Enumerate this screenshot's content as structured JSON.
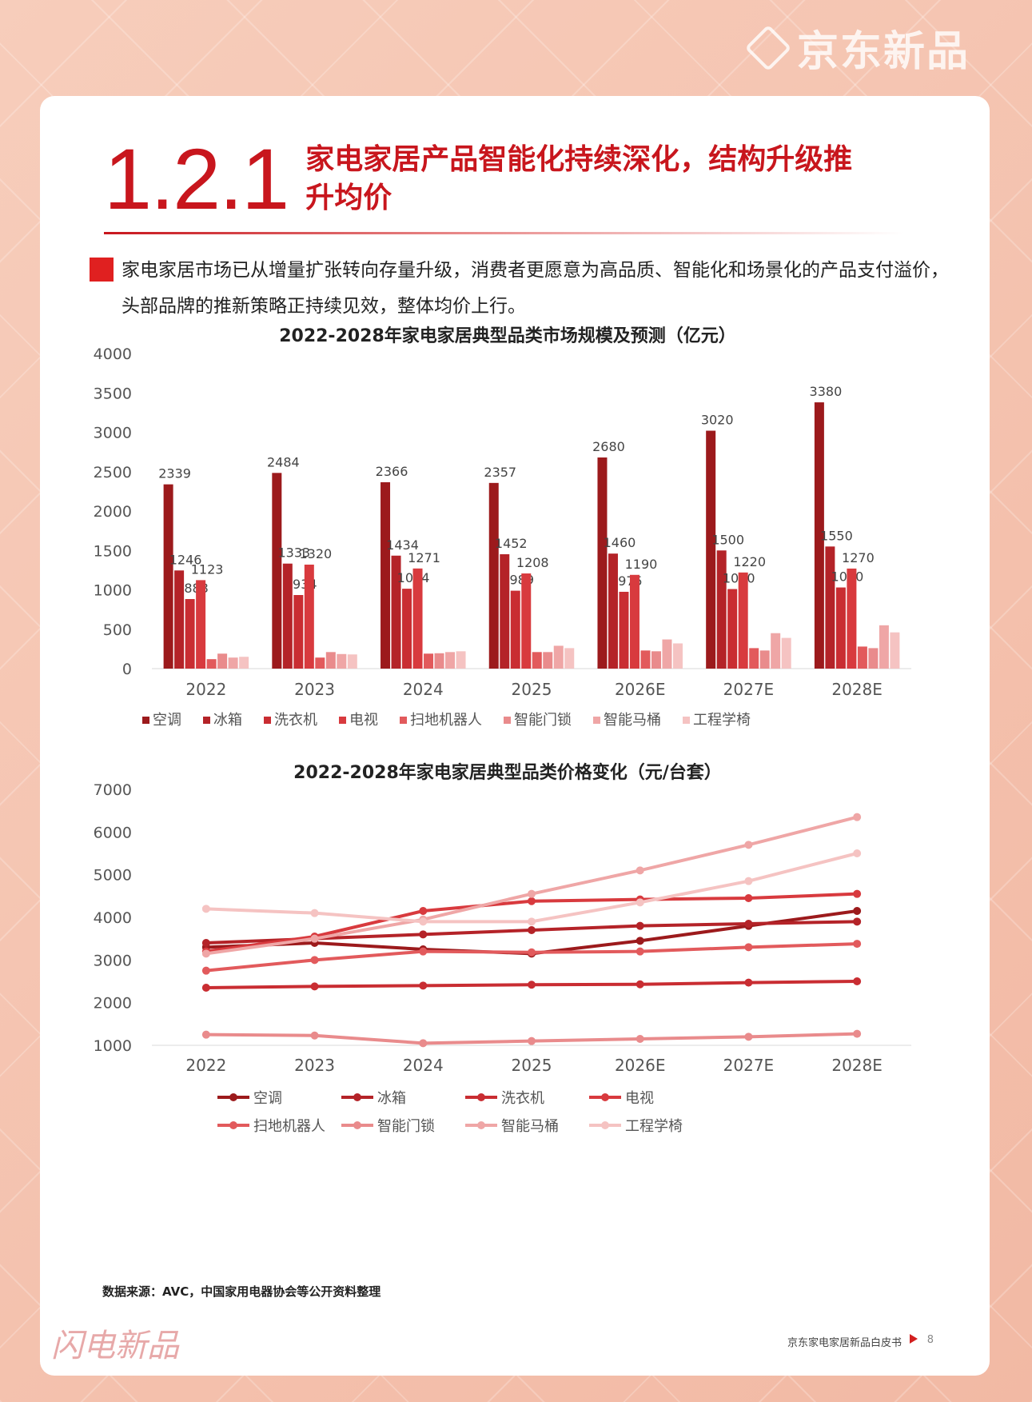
{
  "brand": {
    "name": "京东新品",
    "footer_logo": "闪电新品"
  },
  "section": {
    "number": "1.2.1",
    "title": "家电家居产品智能化持续深化，结构升级推升均价"
  },
  "intro": "家电家居市场已从增量扩张转向存量升级，消费者更愿意为高品质、智能化和场景化的产品支付溢价，头部品牌的推新策略正持续见效，整体均价上行。",
  "colors": [
    "#9c1a1c",
    "#b42328",
    "#c92d32",
    "#d83a3e",
    "#e25a5c",
    "#e98b8c",
    "#efa6a6",
    "#f5c3c2"
  ],
  "chart_data": [
    {
      "type": "bar",
      "title": "2022-2028年家电家居典型品类市场规模及预测（亿元）",
      "categories": [
        "2022",
        "2023",
        "2024",
        "2025",
        "2026E",
        "2027E",
        "2028E"
      ],
      "ylim": [
        0,
        4000
      ],
      "yticks": [
        0,
        500,
        1000,
        1500,
        2000,
        2500,
        3000,
        3500,
        4000
      ],
      "legend_position": "bottom",
      "grid": false,
      "series": [
        {
          "name": "空调",
          "values": [
            2339,
            2484,
            2366,
            2357,
            2680,
            3020,
            3380
          ],
          "labels": true
        },
        {
          "name": "冰箱",
          "values": [
            1246,
            1333,
            1434,
            1452,
            1460,
            1500,
            1550
          ],
          "labels": true
        },
        {
          "name": "洗衣机",
          "values": [
            883,
            934,
            1014,
            989,
            975,
            1010,
            1030
          ],
          "labels": true
        },
        {
          "name": "电视",
          "values": [
            1123,
            1320,
            1271,
            1208,
            1190,
            1220,
            1270
          ],
          "labels": true
        },
        {
          "name": "扫地机器人",
          "values": [
            120,
            140,
            190,
            210,
            230,
            260,
            280
          ],
          "labels": false
        },
        {
          "name": "智能门锁",
          "values": [
            190,
            210,
            195,
            210,
            220,
            230,
            260
          ],
          "labels": false
        },
        {
          "name": "智能马桶",
          "values": [
            140,
            185,
            210,
            290,
            370,
            450,
            550
          ],
          "labels": false
        },
        {
          "name": "工程学椅",
          "values": [
            150,
            180,
            220,
            260,
            320,
            390,
            460
          ],
          "labels": false
        }
      ]
    },
    {
      "type": "line",
      "title": "2022-2028年家电家居典型品类价格变化（元/台套）",
      "categories": [
        "2022",
        "2023",
        "2024",
        "2025",
        "2026E",
        "2027E",
        "2028E"
      ],
      "ylim": [
        1000,
        7000
      ],
      "yticks": [
        1000,
        2000,
        3000,
        4000,
        5000,
        6000,
        7000
      ],
      "legend_position": "bottom",
      "grid": false,
      "series": [
        {
          "name": "空调",
          "values": [
            3300,
            3400,
            3250,
            3150,
            3450,
            3800,
            4150
          ]
        },
        {
          "name": "冰箱",
          "values": [
            3400,
            3500,
            3600,
            3700,
            3800,
            3850,
            3900
          ]
        },
        {
          "name": "洗衣机",
          "values": [
            2350,
            2380,
            2400,
            2420,
            2430,
            2470,
            2500
          ]
        },
        {
          "name": "电视",
          "values": [
            3200,
            3550,
            4150,
            4380,
            4420,
            4450,
            4550
          ]
        },
        {
          "name": "扫地机器人",
          "values": [
            2750,
            3000,
            3200,
            3180,
            3200,
            3300,
            3380
          ]
        },
        {
          "name": "智能门锁",
          "values": [
            1250,
            1230,
            1050,
            1100,
            1150,
            1200,
            1270
          ]
        },
        {
          "name": "智能马桶",
          "values": [
            3150,
            3500,
            3950,
            4550,
            5100,
            5700,
            6350
          ]
        },
        {
          "name": "工程学椅",
          "values": [
            4200,
            4100,
            3900,
            3900,
            4350,
            4850,
            5500
          ]
        }
      ]
    }
  ],
  "source": "数据来源：AVC，中国家用电器协会等公开资料整理",
  "footer": {
    "text": "京东家电家居新品白皮书",
    "page": "8"
  }
}
